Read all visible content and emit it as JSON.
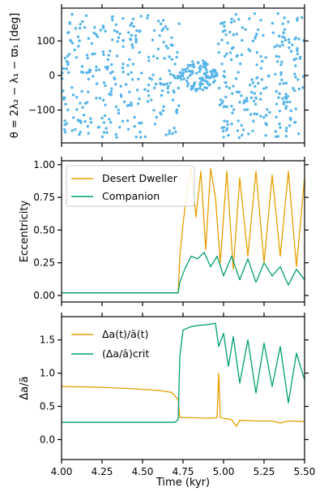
{
  "colors": {
    "scatter": "#56B4E9",
    "desert": "#E69F00",
    "companion": "#009E73"
  },
  "chart_data": [
    {
      "type": "scatter",
      "ylabel": "θ = 2λ₂ − λ₁ − ϖ₁ [deg]",
      "xlim": [
        4.0,
        5.5
      ],
      "ylim": [
        -195,
        195
      ],
      "yticks": [
        -100,
        0,
        100
      ],
      "ytick_labels": [
        "−100",
        "0",
        "100"
      ],
      "description_of_series": "circulating angle (uniform in [-180,180]) except libration around 0 between ~4.72 and ~4.97 kyr"
    },
    {
      "type": "line",
      "ylabel": "Eccentricity",
      "xlim": [
        4.0,
        5.5
      ],
      "ylim": [
        -0.05,
        1.03
      ],
      "yticks": [
        0.0,
        0.25,
        0.5,
        0.75,
        1.0
      ],
      "ytick_labels": [
        "0.00",
        "0.25",
        "0.50",
        "0.75",
        "1.00"
      ],
      "legend_position": "top-left",
      "series": [
        {
          "name": "Desert Dweller",
          "color_key": "desert",
          "x": [
            4.0,
            4.72,
            4.73,
            4.75,
            4.78,
            4.8,
            4.83,
            4.86,
            4.89,
            4.92,
            4.95,
            4.98,
            5.02,
            5.06,
            5.1,
            5.15,
            5.2,
            5.25,
            5.3,
            5.35,
            5.4,
            5.45,
            5.5
          ],
          "values": [
            0.02,
            0.02,
            0.3,
            0.55,
            0.85,
            0.97,
            0.6,
            0.95,
            0.35,
            0.97,
            0.75,
            0.25,
            0.95,
            0.2,
            0.9,
            0.3,
            0.95,
            0.25,
            0.92,
            0.3,
            0.95,
            0.22,
            0.9
          ]
        },
        {
          "name": "Companion",
          "color_key": "companion",
          "x": [
            4.0,
            4.72,
            4.73,
            4.76,
            4.8,
            4.84,
            4.88,
            4.92,
            4.96,
            5.0,
            5.05,
            5.1,
            5.15,
            5.2,
            5.25,
            5.3,
            5.35,
            5.4,
            5.45,
            5.5
          ],
          "values": [
            0.02,
            0.02,
            0.1,
            0.2,
            0.3,
            0.28,
            0.33,
            0.22,
            0.3,
            0.15,
            0.3,
            0.12,
            0.28,
            0.1,
            0.25,
            0.15,
            0.22,
            0.08,
            0.2,
            0.12
          ]
        }
      ]
    },
    {
      "type": "line",
      "ylabel": "Δa/ā",
      "xlabel": "Time (kyr)",
      "xlim": [
        4.0,
        5.5
      ],
      "ylim": [
        -0.3,
        1.85
      ],
      "yticks": [
        0.0,
        0.5,
        1.0,
        1.5
      ],
      "ytick_labels": [
        "0.0",
        "0.5",
        "1.0",
        "1.5"
      ],
      "xticks": [
        4.0,
        4.25,
        4.5,
        4.75,
        5.0,
        5.25,
        5.5
      ],
      "xtick_labels": [
        "4.00",
        "4.25",
        "4.50",
        "4.75",
        "5.00",
        "5.25",
        "5.50"
      ],
      "legend_position": "top-left",
      "series": [
        {
          "name": "Δa(t)/ā(t)",
          "color_key": "desert",
          "x": [
            4.0,
            4.2,
            4.4,
            4.6,
            4.68,
            4.72,
            4.73,
            4.8,
            4.9,
            4.96,
            4.97,
            4.98,
            5.0,
            5.05,
            5.08,
            5.1,
            5.2,
            5.3,
            5.35,
            5.4,
            5.5
          ],
          "values": [
            0.8,
            0.79,
            0.77,
            0.74,
            0.71,
            0.6,
            0.33,
            0.33,
            0.32,
            0.33,
            1.0,
            0.33,
            0.32,
            0.3,
            0.2,
            0.29,
            0.28,
            0.28,
            0.25,
            0.28,
            0.27
          ]
        },
        {
          "name": "(Δa/ā)crit",
          "color_key": "companion",
          "x": [
            4.0,
            4.3,
            4.6,
            4.7,
            4.72,
            4.73,
            4.75,
            4.8,
            4.85,
            4.9,
            4.95,
            4.97,
            5.0,
            5.03,
            5.06,
            5.1,
            5.15,
            5.2,
            5.25,
            5.3,
            5.35,
            5.4,
            5.45,
            5.5
          ],
          "values": [
            0.26,
            0.26,
            0.26,
            0.26,
            0.3,
            1.25,
            1.65,
            1.7,
            1.72,
            1.73,
            1.75,
            1.4,
            1.6,
            1.1,
            1.55,
            0.85,
            1.5,
            0.7,
            1.45,
            0.8,
            1.4,
            0.55,
            1.3,
            0.9
          ]
        }
      ]
    }
  ]
}
